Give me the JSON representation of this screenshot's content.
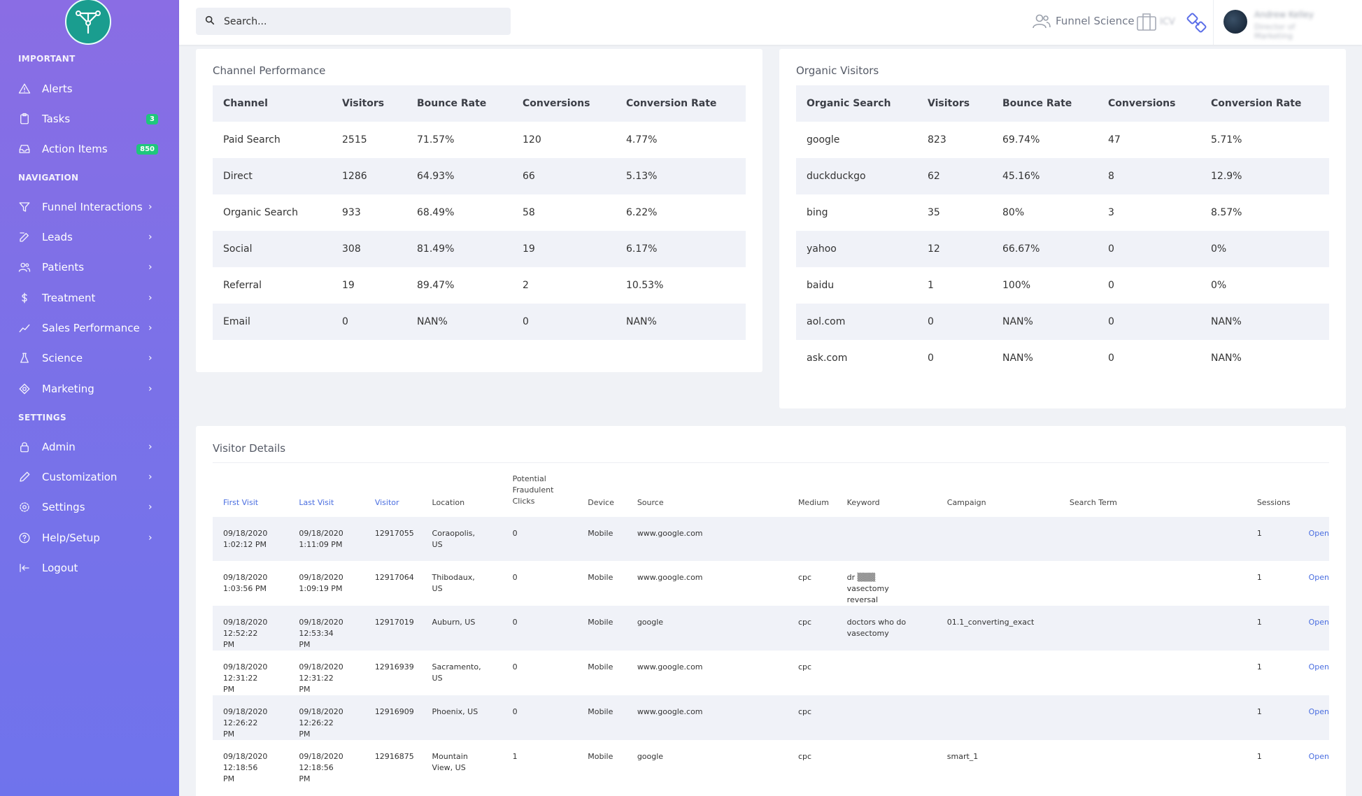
{
  "sidebar": {
    "sections": {
      "important": "IMPORTANT",
      "navigation": "NAVIGATION",
      "settings": "SETTINGS"
    },
    "alerts": "Alerts",
    "tasks": "Tasks",
    "tasks_badge": "3",
    "action_items": "Action Items",
    "action_items_badge": "850",
    "funnel": "Funnel Interactions",
    "leads": "Leads",
    "patients": "Patients",
    "treatment": "Treatment",
    "sales": "Sales Performance",
    "science": "Science",
    "marketing": "Marketing",
    "admin": "Admin",
    "customization": "Customization",
    "settings": "Settings",
    "help": "Help/Setup",
    "logout": "Logout",
    "chevron": "›"
  },
  "topbar": {
    "search_placeholder": "Search...",
    "funnel_science": "Funnel Science",
    "brief_label": "ICV",
    "user_name": "Andrew Kelley",
    "user_role": "Director of Marketing"
  },
  "channel": {
    "title": "Channel Performance",
    "headers": [
      "Channel",
      "Visitors",
      "Bounce Rate",
      "Conversions",
      "Conversion Rate"
    ],
    "rows": [
      [
        "Paid Search",
        "2515",
        "71.57%",
        "120",
        "4.77%"
      ],
      [
        "Direct",
        "1286",
        "64.93%",
        "66",
        "5.13%"
      ],
      [
        "Organic Search",
        "933",
        "68.49%",
        "58",
        "6.22%"
      ],
      [
        "Social",
        "308",
        "81.49%",
        "19",
        "6.17%"
      ],
      [
        "Referral",
        "19",
        "89.47%",
        "2",
        "10.53%"
      ],
      [
        "Email",
        "0",
        "NAN%",
        "0",
        "NAN%"
      ]
    ]
  },
  "organic": {
    "title": "Organic Visitors",
    "headers": [
      "Organic Search",
      "Visitors",
      "Bounce Rate",
      "Conversions",
      "Conversion Rate"
    ],
    "rows": [
      [
        "google",
        "823",
        "69.74%",
        "47",
        "5.71%"
      ],
      [
        "duckduckgo",
        "62",
        "45.16%",
        "8",
        "12.9%"
      ],
      [
        "bing",
        "35",
        "80%",
        "3",
        "8.57%"
      ],
      [
        "yahoo",
        "12",
        "66.67%",
        "0",
        "0%"
      ],
      [
        "baidu",
        "1",
        "100%",
        "0",
        "0%"
      ],
      [
        "aol.com",
        "0",
        "NAN%",
        "0",
        "NAN%"
      ],
      [
        "ask.com",
        "0",
        "NAN%",
        "0",
        "NAN%"
      ]
    ]
  },
  "visitors": {
    "title": "Visitor Details",
    "headers": [
      "First Visit",
      "Last Visit",
      "Visitor",
      "Location",
      "Potential Fraudulent Clicks",
      "Device",
      "Source",
      "Medium",
      "Keyword",
      "Campaign",
      "Search Term",
      "Sessions",
      ""
    ],
    "open_label": "Open",
    "rows": [
      {
        "first": "09/18/2020 1:02:12 PM",
        "last": "09/18/2020 1:11:09 PM",
        "visitor": "12917055",
        "location": "Coraopolis, US",
        "fraud": "0",
        "device": "Mobile",
        "source": "www.google.com",
        "medium": "",
        "keyword": "",
        "campaign": "",
        "term": "",
        "sessions": "1"
      },
      {
        "first": "09/18/2020 1:03:56 PM",
        "last": "09/18/2020 1:09:19 PM",
        "visitor": "12917064",
        "location": "Thibodaux, US",
        "fraud": "0",
        "device": "Mobile",
        "source": "www.google.com",
        "medium": "cpc",
        "keyword": "dr ▒▒▒ vasectomy reversal",
        "campaign": "",
        "term": "",
        "sessions": "1"
      },
      {
        "first": "09/18/2020 12:52:22 PM",
        "last": "09/18/2020 12:53:34 PM",
        "visitor": "12917019",
        "location": "Auburn, US",
        "fraud": "0",
        "device": "Mobile",
        "source": "google",
        "medium": "cpc",
        "keyword": "doctors who do vasectomy",
        "campaign": "01.1_converting_exact",
        "term": "",
        "sessions": "1"
      },
      {
        "first": "09/18/2020 12:31:22 PM",
        "last": "09/18/2020 12:31:22 PM",
        "visitor": "12916939",
        "location": "Sacramento, US",
        "fraud": "0",
        "device": "Mobile",
        "source": "www.google.com",
        "medium": "cpc",
        "keyword": "",
        "campaign": "",
        "term": "",
        "sessions": "1"
      },
      {
        "first": "09/18/2020 12:26:22 PM",
        "last": "09/18/2020 12:26:22 PM",
        "visitor": "12916909",
        "location": "Phoenix, US",
        "fraud": "0",
        "device": "Mobile",
        "source": "www.google.com",
        "medium": "cpc",
        "keyword": "",
        "campaign": "",
        "term": "",
        "sessions": "1"
      },
      {
        "first": "09/18/2020 12:18:56 PM",
        "last": "09/18/2020 12:18:56 PM",
        "visitor": "12916875",
        "location": "Mountain View, US",
        "fraud": "1",
        "device": "Mobile",
        "source": "google",
        "medium": "cpc",
        "keyword": "",
        "campaign": "smart_1",
        "term": "",
        "sessions": "1"
      }
    ]
  }
}
